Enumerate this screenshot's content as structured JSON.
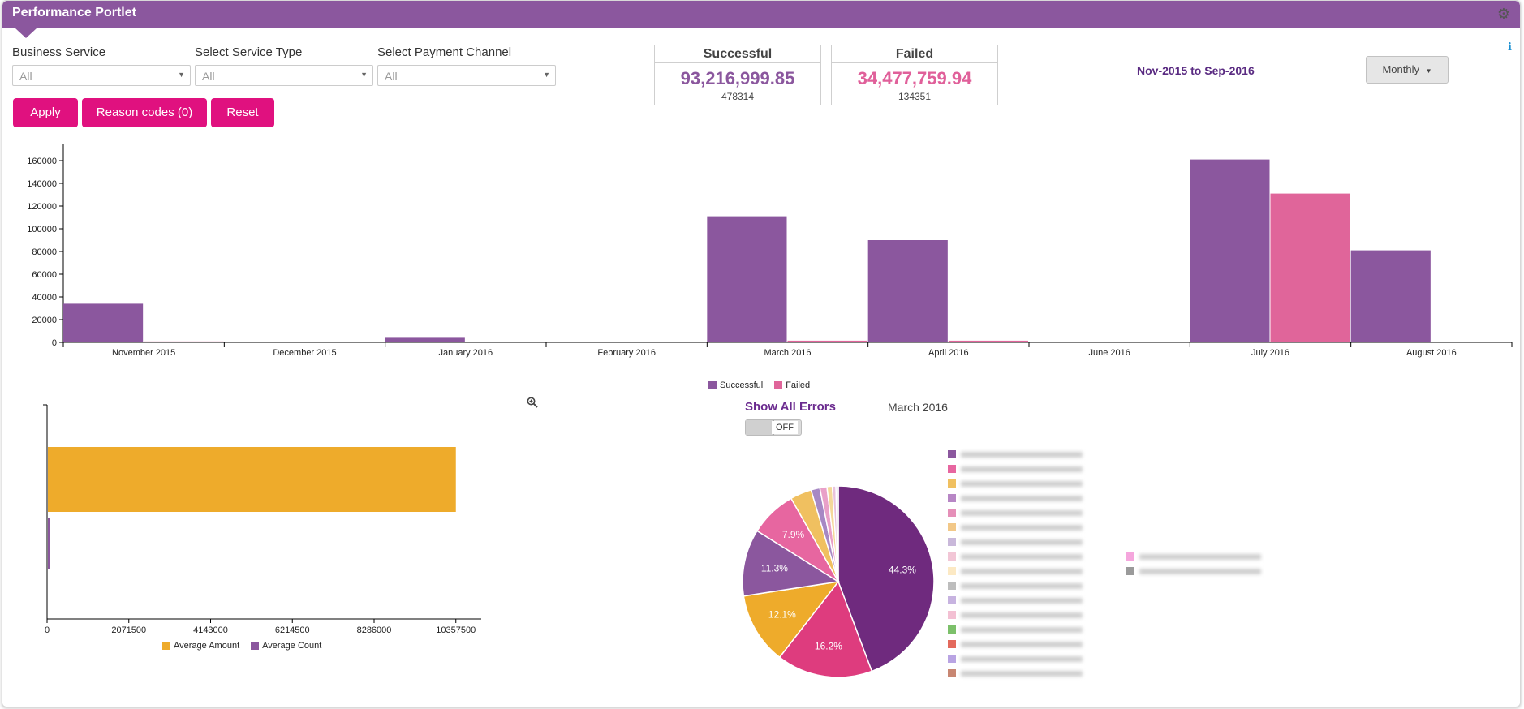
{
  "header": {
    "title": "Performance Portlet"
  },
  "filters": [
    {
      "label": "Business Service",
      "value": "All"
    },
    {
      "label": "Select Service Type",
      "value": "All"
    },
    {
      "label": "Select Payment Channel",
      "value": "All"
    }
  ],
  "buttons": {
    "apply": "Apply",
    "reason_codes": "Reason codes (0)",
    "reset": "Reset"
  },
  "summary": {
    "successful": {
      "title": "Successful",
      "amount": "93,216,999.85",
      "count": "478314",
      "color": "#8b579e"
    },
    "failed": {
      "title": "Failed",
      "amount": "34,477,759.94",
      "count": "134351",
      "color": "#e0609a"
    }
  },
  "date_range": "Nov-2015 to Sep-2016",
  "period_dropdown": "Monthly",
  "icons": {
    "settings": "gear-icon",
    "info": "info-icon",
    "zoom": "zoom-in-icon",
    "dropdown": "caret-down-icon"
  },
  "pie_panel": {
    "show_all_errors": "Show All Errors",
    "month": "March 2016",
    "toggle": "OFF"
  },
  "chart_data": [
    {
      "type": "bar",
      "categories": [
        "November 2015",
        "December 2015",
        "January 2016",
        "February 2016",
        "March 2016",
        "April 2016",
        "June 2016",
        "July 2016",
        "August 2016"
      ],
      "series": [
        {
          "name": "Successful",
          "color": "#8b579e",
          "values": [
            34000,
            0,
            4000,
            0,
            111000,
            90000,
            0,
            161000,
            81000
          ]
        },
        {
          "name": "Failed",
          "color": "#e0659a",
          "values": [
            800,
            0,
            0,
            0,
            1500,
            1500,
            0,
            131000,
            0
          ]
        }
      ],
      "yticks": [
        0,
        20000,
        40000,
        60000,
        80000,
        100000,
        120000,
        140000,
        160000
      ],
      "ylim": [
        0,
        175000
      ],
      "legend": "bottom-center"
    },
    {
      "type": "bar",
      "orientation": "horizontal",
      "series": [
        {
          "name": "Average Amount",
          "color": "#eeab2b",
          "values": [
            10357500
          ]
        },
        {
          "name": "Average Count",
          "color": "#8b579e",
          "values": [
            50000
          ]
        }
      ],
      "xticks": [
        "0",
        "2071500",
        "4143000",
        "6214500",
        "8286000",
        "10357500"
      ],
      "xlim": [
        0,
        11000000
      ],
      "legend": "bottom-center"
    },
    {
      "type": "pie",
      "slices": [
        {
          "value": 44.3,
          "color": "#6f2a7e",
          "label": "44.3%"
        },
        {
          "value": 16.2,
          "color": "#de3c7e",
          "label": "16.2%"
        },
        {
          "value": 12.1,
          "color": "#eeab2b",
          "label": "12.1%"
        },
        {
          "value": 11.3,
          "color": "#8b579e",
          "label": "11.3%"
        },
        {
          "value": 7.9,
          "color": "#e766a0",
          "label": "7.9%"
        },
        {
          "value": 3.6,
          "color": "#f0c060",
          "label": ""
        },
        {
          "value": 1.5,
          "color": "#a788c4",
          "label": ""
        },
        {
          "value": 1.2,
          "color": "#e9a0c8",
          "label": ""
        },
        {
          "value": 0.9,
          "color": "#f4d89a",
          "label": ""
        },
        {
          "value": 0.6,
          "color": "#e8c2dd",
          "label": ""
        },
        {
          "value": 0.4,
          "color": "#c9b8da",
          "label": ""
        }
      ],
      "legend_colors": [
        "#8b579e",
        "#e766a0",
        "#f0c060",
        "#b786c5",
        "#e58fb8",
        "#f2c888",
        "#c9b8da",
        "#f2c6d6",
        "#fce9c4",
        "#bdbdbd",
        "#c7b3e0",
        "#f3c0d3",
        "#7cc06a",
        "#e3695c",
        "#b9a4e3",
        "#c88672"
      ],
      "legend_colors_col2": [
        "#f5a6dd",
        "#9a9a9a"
      ]
    }
  ]
}
